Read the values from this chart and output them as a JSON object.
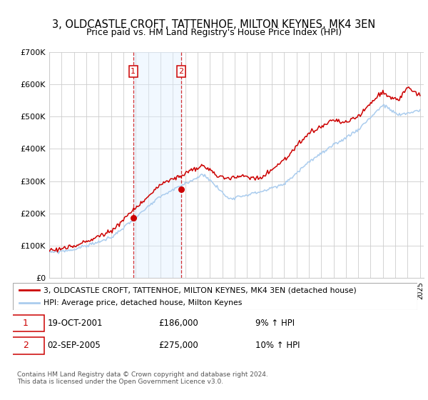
{
  "title": "3, OLDCASTLE CROFT, TATTENHOE, MILTON KEYNES, MK4 3EN",
  "subtitle": "Price paid vs. HM Land Registry's House Price Index (HPI)",
  "ylim": [
    0,
    700000
  ],
  "yticks": [
    0,
    100000,
    200000,
    300000,
    400000,
    500000,
    600000,
    700000
  ],
  "ytick_labels": [
    "£0",
    "£100K",
    "£200K",
    "£300K",
    "£400K",
    "£500K",
    "£600K",
    "£700K"
  ],
  "xlim_start": 1995.0,
  "xlim_end": 2025.3,
  "purchase1_x": 2001.8,
  "purchase1_y": 186000,
  "purchase2_x": 2005.67,
  "purchase2_y": 275000,
  "red_color": "#cc0000",
  "blue_color": "#aaccee",
  "bg_color": "#ffffff",
  "grid_color": "#cccccc",
  "shade_color": "#ddeeff",
  "title_fontsize": 10.5,
  "subtitle_fontsize": 9,
  "legend_label_red": "3, OLDCASTLE CROFT, TATTENHOE, MILTON KEYNES, MK4 3EN (detached house)",
  "legend_label_blue": "HPI: Average price, detached house, Milton Keynes",
  "table_row1": [
    "1",
    "19-OCT-2001",
    "£186,000",
    "9% ↑ HPI"
  ],
  "table_row2": [
    "2",
    "02-SEP-2005",
    "£275,000",
    "10% ↑ HPI"
  ],
  "copyright": "Contains HM Land Registry data © Crown copyright and database right 2024.\nThis data is licensed under the Open Government Licence v3.0."
}
